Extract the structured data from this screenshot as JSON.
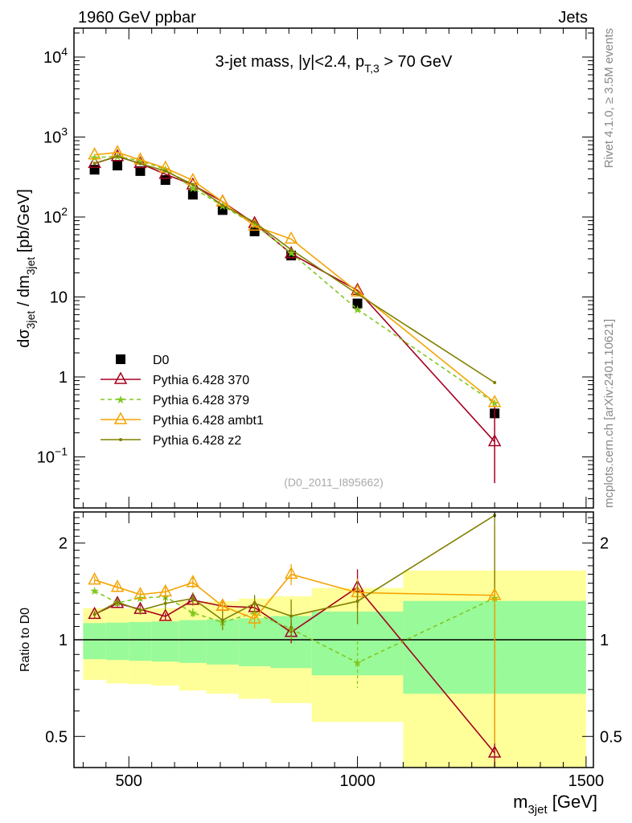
{
  "header": {
    "left": "1960 GeV ppbar",
    "right": "Jets"
  },
  "side": {
    "rivet": "Rivet 4.1.0, ≥ 3.5M events",
    "mcplots": "mcplots.cern.ch [arXiv:2401.10621]"
  },
  "analysis_id": "(D0_2011_I895662)",
  "colors": {
    "D0": "#000000",
    "p370": "#a50021",
    "p379": "#80c820",
    "ambt1": "#f4a300",
    "z2": "#808000",
    "band_inner": "#99fa99",
    "band_outer": "#ffff99"
  },
  "chart_data": [
    {
      "type": "line",
      "title": "3-jet mass, |y|<2.4, p_T,3 > 70 GeV",
      "title_parts": {
        "a": "3-jet mass, |y|<2.4, p",
        "sub": "T,3",
        "b": " > 70 GeV"
      },
      "ylabel_parts": {
        "a": "dσ",
        "sub1": "3jet",
        "b": " / dm",
        "sub2": "3jet",
        "c": " [pb/GeV]"
      },
      "yscale": "log",
      "xlim": [
        380,
        1516
      ],
      "ylim": [
        0.023,
        23000
      ],
      "ytick_labels": [
        {
          "v": 0.1,
          "base": "10",
          "exp": "−1"
        },
        {
          "v": 1,
          "base": "1",
          "exp": ""
        },
        {
          "v": 10,
          "base": "10",
          "exp": ""
        },
        {
          "v": 100,
          "base": "10",
          "exp": "2"
        },
        {
          "v": 1000,
          "base": "10",
          "exp": "3"
        },
        {
          "v": 10000,
          "base": "10",
          "exp": "4"
        }
      ],
      "x": [
        425,
        475,
        525,
        580,
        640,
        705,
        775,
        855,
        1000,
        1300
      ],
      "legend_position": "lower-left",
      "series": [
        {
          "key": "D0",
          "name": "D0",
          "marker": "square",
          "values": [
            390,
            440,
            375,
            290,
            190,
            122,
            66,
            33,
            8.3,
            0.35
          ]
        },
        {
          "key": "p370",
          "name": "Pythia 6.428 370",
          "marker": "triangle",
          "values": [
            468,
            571,
            467,
            343,
            252,
            155,
            83,
            34.8,
            12.1,
            0.155
          ],
          "err_low_last": 0.047,
          "err_high_last": 0.42
        },
        {
          "key": "p379",
          "name": "Pythia 6.428 379",
          "marker": "star",
          "dashed": true,
          "values": [
            554,
            573,
            506,
            395,
            230,
            138,
            80,
            35.6,
            7.0,
            0.47
          ]
        },
        {
          "key": "ambt1",
          "name": "Pythia 6.428 ambt1",
          "marker": "triangle",
          "values": [
            599,
            641,
            519,
            409,
            287,
            155,
            77,
            53,
            11.6,
            0.48
          ]
        },
        {
          "key": "z2",
          "name": "Pythia 6.428 z2",
          "marker": "dot",
          "values": [
            468,
            576,
            464,
            376,
            255,
            140,
            86,
            39,
            10.9,
            0.85
          ]
        }
      ]
    },
    {
      "type": "line",
      "ylabel": "Ratio to D0",
      "xlabel_parts": {
        "a": "m",
        "sub": "3jet",
        "b": " [GeV]"
      },
      "yscale": "log",
      "xlim": [
        380,
        1516
      ],
      "ylim": [
        0.4,
        2.5
      ],
      "ytick_labels": [
        {
          "v": 0.5,
          "label": "0.5"
        },
        {
          "v": 1,
          "label": "1"
        },
        {
          "v": 2,
          "label": "2"
        }
      ],
      "xtick_labels": [
        {
          "v": 500,
          "label": "500"
        },
        {
          "v": 1000,
          "label": "1000"
        },
        {
          "v": 1500,
          "label": "1500"
        }
      ],
      "bin_edges": [
        400,
        450,
        500,
        550,
        610,
        670,
        740,
        810,
        900,
        1100,
        1500
      ],
      "band_inner": {
        "high": [
          1.127,
          1.131,
          1.136,
          1.14,
          1.151,
          1.158,
          1.167,
          1.185,
          1.224,
          1.321
        ],
        "low": [
          0.87,
          0.865,
          0.86,
          0.855,
          0.847,
          0.837,
          0.827,
          0.816,
          0.775,
          0.679
        ]
      },
      "band_outer": {
        "high": [
          1.253,
          1.253,
          1.253,
          1.253,
          1.318,
          1.318,
          1.344,
          1.365,
          1.449,
          1.643
        ],
        "low": [
          0.75,
          0.731,
          0.727,
          0.72,
          0.695,
          0.679,
          0.655,
          0.635,
          0.555,
          0.3
        ]
      },
      "x": [
        425,
        475,
        525,
        580,
        640,
        705,
        775,
        855,
        1000,
        1300
      ],
      "series": [
        {
          "key": "p370",
          "values": [
            1.2,
            1.298,
            1.244,
            1.183,
            1.328,
            1.273,
            1.26,
            1.055,
            1.457,
            0.444
          ],
          "err": [
            0.03,
            0.03,
            0.04,
            0.03,
            0.05,
            0.05,
            0.05,
            0.08,
            0.2,
            1.3
          ]
        },
        {
          "key": "p379",
          "values": [
            1.42,
            1.302,
            1.349,
            1.362,
            1.213,
            1.134,
            1.213,
            1.08,
            0.848,
            1.349
          ],
          "err": [
            0.03,
            0.03,
            0.03,
            0.04,
            0.04,
            0.05,
            0.05,
            0.08,
            0.14,
            0.7
          ]
        },
        {
          "key": "ambt1",
          "values": [
            1.535,
            1.457,
            1.383,
            1.41,
            1.508,
            1.273,
            1.162,
            1.599,
            1.402,
            1.375
          ],
          "err": [
            0.04,
            0.04,
            0.04,
            0.05,
            0.06,
            0.06,
            0.08,
            0.12,
            0.15,
            0.9
          ]
        },
        {
          "key": "z2",
          "values": [
            1.2,
            1.31,
            1.236,
            1.298,
            1.344,
            1.151,
            1.298,
            1.185,
            1.318,
            2.44
          ],
          "err": [
            0.03,
            0.04,
            0.04,
            0.06,
            0.06,
            0.08,
            0.08,
            0.15,
            0.2,
            1.0
          ]
        }
      ]
    }
  ]
}
